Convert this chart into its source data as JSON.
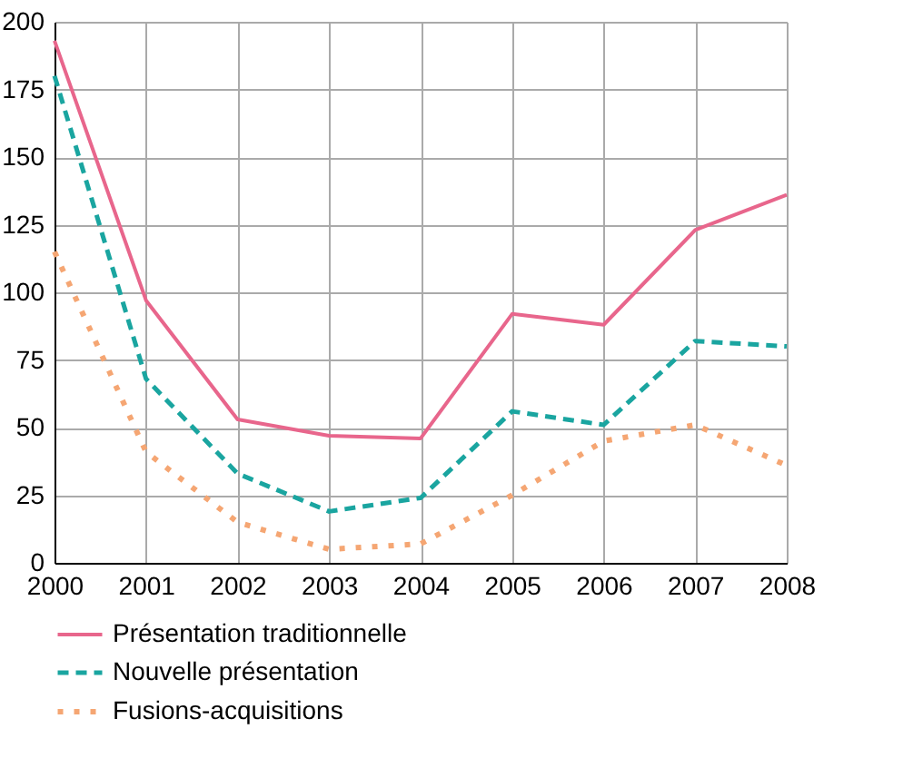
{
  "chart_data": {
    "type": "line",
    "x": [
      2000,
      2001,
      2002,
      2003,
      2004,
      2005,
      2006,
      2007,
      2008
    ],
    "series": [
      {
        "name": "Présentation traditionnelle",
        "color": "#e8668c",
        "line_style": "solid",
        "values": [
          193,
          97,
          53,
          47,
          46,
          92,
          88,
          123,
          136
        ]
      },
      {
        "name": "Nouvelle présentation",
        "color": "#1aa5a0",
        "line_style": "dashed",
        "values": [
          180,
          68,
          33,
          19,
          24,
          56,
          51,
          82,
          80
        ]
      },
      {
        "name": "Fusions-acquisitions",
        "color": "#f5a673",
        "line_style": "dotted",
        "values": [
          115,
          41,
          15,
          5,
          7,
          25,
          45,
          51,
          36
        ]
      }
    ],
    "xlim": [
      2000,
      2008
    ],
    "xticks": [
      2000,
      2001,
      2002,
      2003,
      2004,
      2005,
      2006,
      2007,
      2008
    ],
    "ylim": [
      0,
      200
    ],
    "yticks": [
      0,
      25,
      50,
      75,
      100,
      125,
      150,
      175,
      200
    ],
    "grid": true,
    "legend": "bottom",
    "marker": "none"
  }
}
